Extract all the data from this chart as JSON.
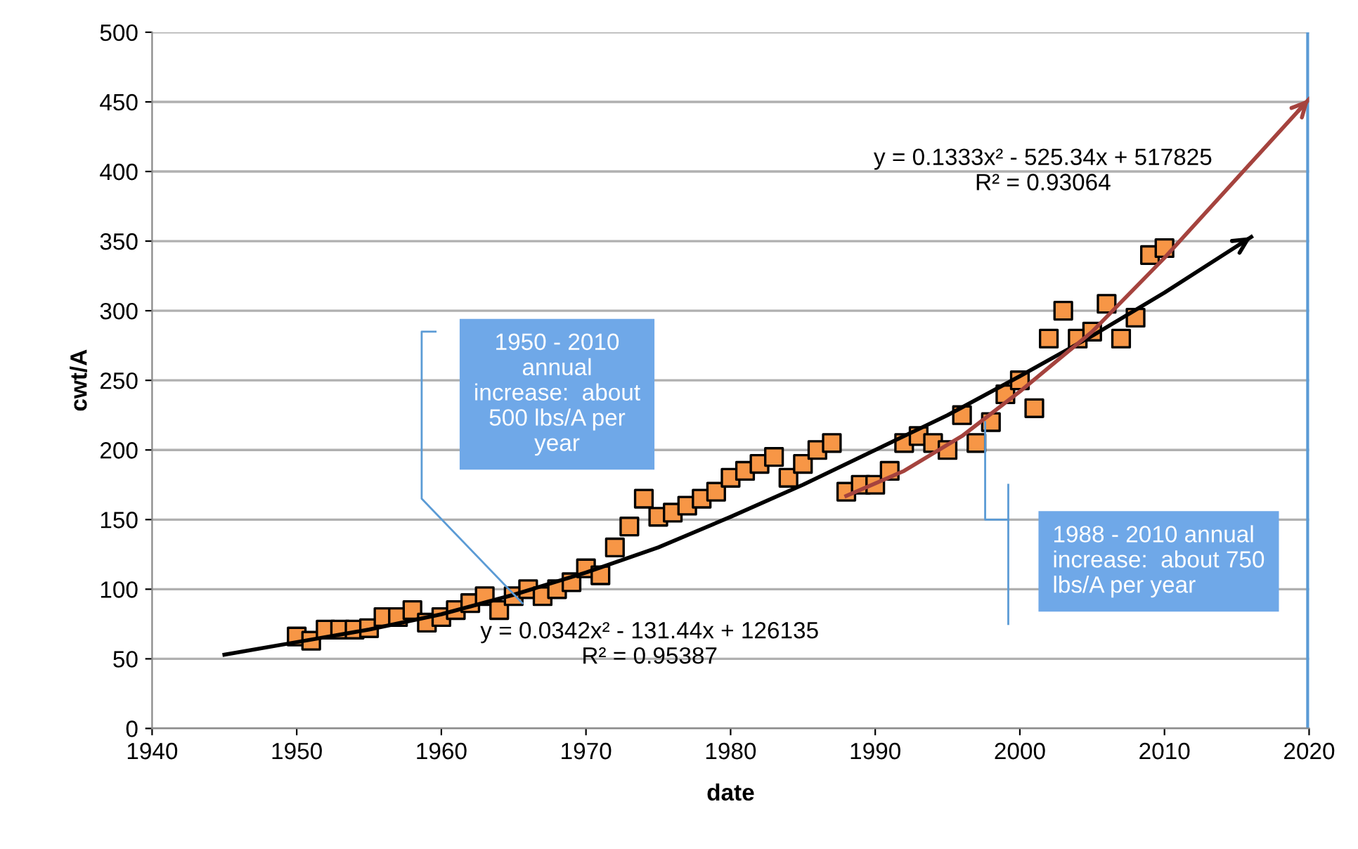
{
  "chart_data": {
    "type": "scatter",
    "xlabel": "date",
    "ylabel": "cwt/A",
    "xlim": [
      1940,
      2020
    ],
    "xticks": [
      1940,
      1950,
      1960,
      1970,
      1980,
      1990,
      2000,
      2010,
      2020
    ],
    "ylim": [
      0,
      500
    ],
    "yticks": [
      0,
      50,
      100,
      150,
      200,
      250,
      300,
      350,
      400,
      450,
      500
    ],
    "grid": "y",
    "legend": false,
    "series": [
      {
        "marker": "square",
        "color": "#f79646",
        "x": [
          1950,
          1951,
          1952,
          1953,
          1954,
          1955,
          1956,
          1957,
          1958,
          1959,
          1960,
          1961,
          1962,
          1963,
          1964,
          1965,
          1966,
          1967,
          1968,
          1969,
          1970,
          1971,
          1972,
          1973,
          1974,
          1975,
          1976,
          1977,
          1978,
          1979,
          1980,
          1981,
          1982,
          1983,
          1984,
          1985,
          1986,
          1987,
          1988,
          1989,
          1990,
          1991,
          1992,
          1993,
          1994,
          1995,
          1996,
          1997,
          1998,
          1999,
          2000,
          2001,
          2002,
          2003,
          2004,
          2005,
          2006,
          2007,
          2008,
          2009,
          2010
        ],
        "values": [
          66,
          63,
          71,
          71,
          71,
          72,
          80,
          80,
          85,
          76,
          80,
          85,
          90,
          95,
          85,
          95,
          100,
          95,
          100,
          105,
          115,
          110,
          130,
          145,
          165,
          152,
          155,
          160,
          165,
          170,
          180,
          185,
          190,
          195,
          180,
          190,
          200,
          205,
          170,
          175,
          175,
          185,
          205,
          210,
          205,
          200,
          225,
          205,
          220,
          240,
          250,
          230,
          280,
          300,
          280,
          285,
          305,
          280,
          295,
          340,
          345
        ]
      },
      {
        "type": "line",
        "marker": "none",
        "line_style": "solid",
        "color": "#000000",
        "x": [
          1945,
          1950,
          1955,
          1960,
          1965,
          1970,
          1975,
          1980,
          1985,
          1990,
          1995,
          2000,
          2005,
          2010,
          2016
        ],
        "values": [
          53,
          62,
          71,
          82,
          96,
          112,
          130,
          152,
          175,
          200,
          225,
          253,
          282,
          313,
          353
        ]
      },
      {
        "type": "line",
        "marker": "none",
        "line_style": "solid",
        "color": "#a5433e",
        "x": [
          1988,
          1992,
          1996,
          2000,
          2005,
          2010,
          2015,
          2020
        ],
        "values": [
          167,
          185,
          210,
          242,
          285,
          338,
          395,
          452
        ]
      }
    ],
    "ref_lines": [
      {
        "axis": "x",
        "value": 2020,
        "color": "#5b9bd5"
      }
    ],
    "annotations": [
      "y = 0.1333x² - 525.34x + 517825\nR² = 0.93064",
      "y = 0.0342x² - 131.44x + 126135\nR² = 0.95387",
      "1950 - 2010\nannual\nincrease:  about\n500 lbs/A per\nyear",
      "1988 - 2010 annual\nincrease:  about 750\nlbs/A per year"
    ]
  }
}
